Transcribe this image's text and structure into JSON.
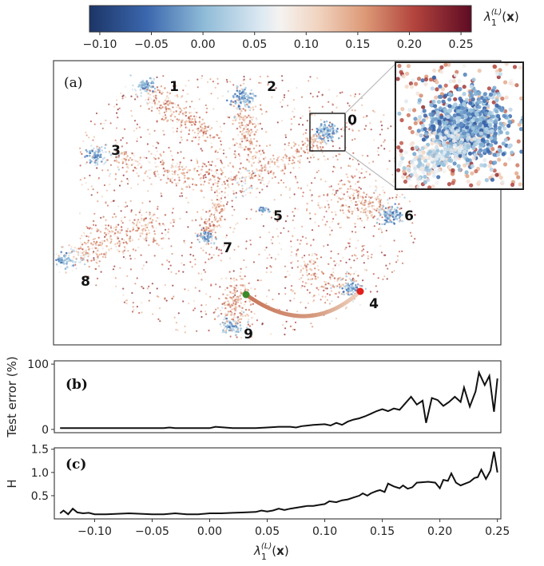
{
  "colorbar": {
    "ticks": [
      "−0.10",
      "−0.05",
      "0.00",
      "0.05",
      "0.10",
      "0.15",
      "0.20",
      "0.25"
    ],
    "tick_values": [
      -0.1,
      -0.05,
      0.0,
      0.05,
      0.1,
      0.15,
      0.2,
      0.25
    ],
    "range": [
      -0.11,
      0.26
    ],
    "colormap": "RdBu_r",
    "label": {
      "symbol": "λ",
      "sub": "1",
      "sup": "(L)",
      "arg_open": "(",
      "arg": "x",
      "arg_close": ")"
    }
  },
  "chart_data": [
    {
      "type": "scatter",
      "panel_label": "(a)",
      "cluster_labels": [
        "0",
        "1",
        "2",
        "3",
        "4",
        "5",
        "6",
        "7",
        "8",
        "9"
      ],
      "color_by": "λ1(L)(x)",
      "path_start_color": "#3a8a2a",
      "path_end_color": "#e0201c",
      "inset": true
    },
    {
      "type": "line",
      "panel_label": "(b)",
      "ylabel": "Test error (%)",
      "yticks": [
        "0",
        "100"
      ],
      "ytick_values": [
        0,
        100
      ],
      "ylim": [
        -5,
        105
      ],
      "xlim": [
        -0.135,
        0.253
      ],
      "x": [
        -0.13,
        -0.12,
        -0.1,
        -0.08,
        -0.06,
        -0.04,
        -0.035,
        -0.03,
        -0.01,
        0.0,
        0.005,
        0.02,
        0.03,
        0.04,
        0.05,
        0.06,
        0.07,
        0.075,
        0.08,
        0.09,
        0.1,
        0.105,
        0.11,
        0.115,
        0.12,
        0.125,
        0.13,
        0.135,
        0.14,
        0.145,
        0.15,
        0.155,
        0.16,
        0.165,
        0.17,
        0.175,
        0.18,
        0.185,
        0.188,
        0.193,
        0.198,
        0.203,
        0.208,
        0.213,
        0.218,
        0.221,
        0.226,
        0.231,
        0.234,
        0.239,
        0.243,
        0.247,
        0.25
      ],
      "y": [
        2,
        2,
        2,
        2,
        2,
        2,
        3,
        2,
        2,
        2,
        4,
        2,
        2,
        2,
        3,
        4,
        4,
        3,
        5,
        7,
        8,
        6,
        10,
        7,
        12,
        15,
        17,
        20,
        24,
        28,
        31,
        28,
        32,
        30,
        40,
        50,
        38,
        44,
        10,
        48,
        45,
        36,
        42,
        50,
        42,
        64,
        35,
        58,
        87,
        68,
        82,
        27,
        78
      ]
    },
    {
      "type": "line",
      "panel_label": "(c)",
      "ylabel": "H",
      "xlabel": "λ1(L)(x)",
      "yticks": [
        "0.5",
        "1.0",
        "1.5"
      ],
      "ytick_values": [
        0.5,
        1.0,
        1.5
      ],
      "xticks": [
        "−0.10",
        "−0.05",
        "0.00",
        "0.05",
        "0.10",
        "0.15",
        "0.20",
        "0.25"
      ],
      "xtick_values": [
        -0.1,
        -0.05,
        0.0,
        0.05,
        0.1,
        0.15,
        0.2,
        0.25
      ],
      "ylim": [
        0.0,
        1.53
      ],
      "xlim": [
        -0.135,
        0.253
      ],
      "x": [
        -0.13,
        -0.127,
        -0.123,
        -0.119,
        -0.115,
        -0.11,
        -0.105,
        -0.1,
        -0.09,
        -0.08,
        -0.07,
        -0.06,
        -0.05,
        -0.04,
        -0.03,
        -0.02,
        -0.01,
        0.0,
        0.01,
        0.02,
        0.03,
        0.04,
        0.045,
        0.05,
        0.055,
        0.06,
        0.065,
        0.07,
        0.08,
        0.085,
        0.09,
        0.095,
        0.1,
        0.104,
        0.11,
        0.115,
        0.12,
        0.125,
        0.13,
        0.133,
        0.137,
        0.14,
        0.145,
        0.148,
        0.152,
        0.155,
        0.16,
        0.165,
        0.168,
        0.172,
        0.176,
        0.18,
        0.19,
        0.196,
        0.2,
        0.203,
        0.207,
        0.21,
        0.214,
        0.218,
        0.222,
        0.226,
        0.23,
        0.233,
        0.236,
        0.24,
        0.244,
        0.247,
        0.25
      ],
      "y": [
        0.12,
        0.18,
        0.1,
        0.22,
        0.14,
        0.12,
        0.13,
        0.1,
        0.1,
        0.11,
        0.12,
        0.11,
        0.1,
        0.1,
        0.12,
        0.1,
        0.1,
        0.12,
        0.12,
        0.13,
        0.14,
        0.15,
        0.18,
        0.16,
        0.18,
        0.22,
        0.19,
        0.22,
        0.26,
        0.28,
        0.28,
        0.3,
        0.32,
        0.38,
        0.36,
        0.4,
        0.42,
        0.46,
        0.5,
        0.55,
        0.5,
        0.55,
        0.6,
        0.62,
        0.58,
        0.76,
        0.7,
        0.66,
        0.72,
        0.65,
        0.68,
        0.78,
        0.8,
        0.78,
        0.66,
        0.84,
        0.82,
        0.98,
        0.78,
        0.72,
        0.76,
        0.8,
        0.88,
        0.9,
        1.06,
        0.86,
        1.04,
        1.45,
        1.0
      ]
    }
  ]
}
